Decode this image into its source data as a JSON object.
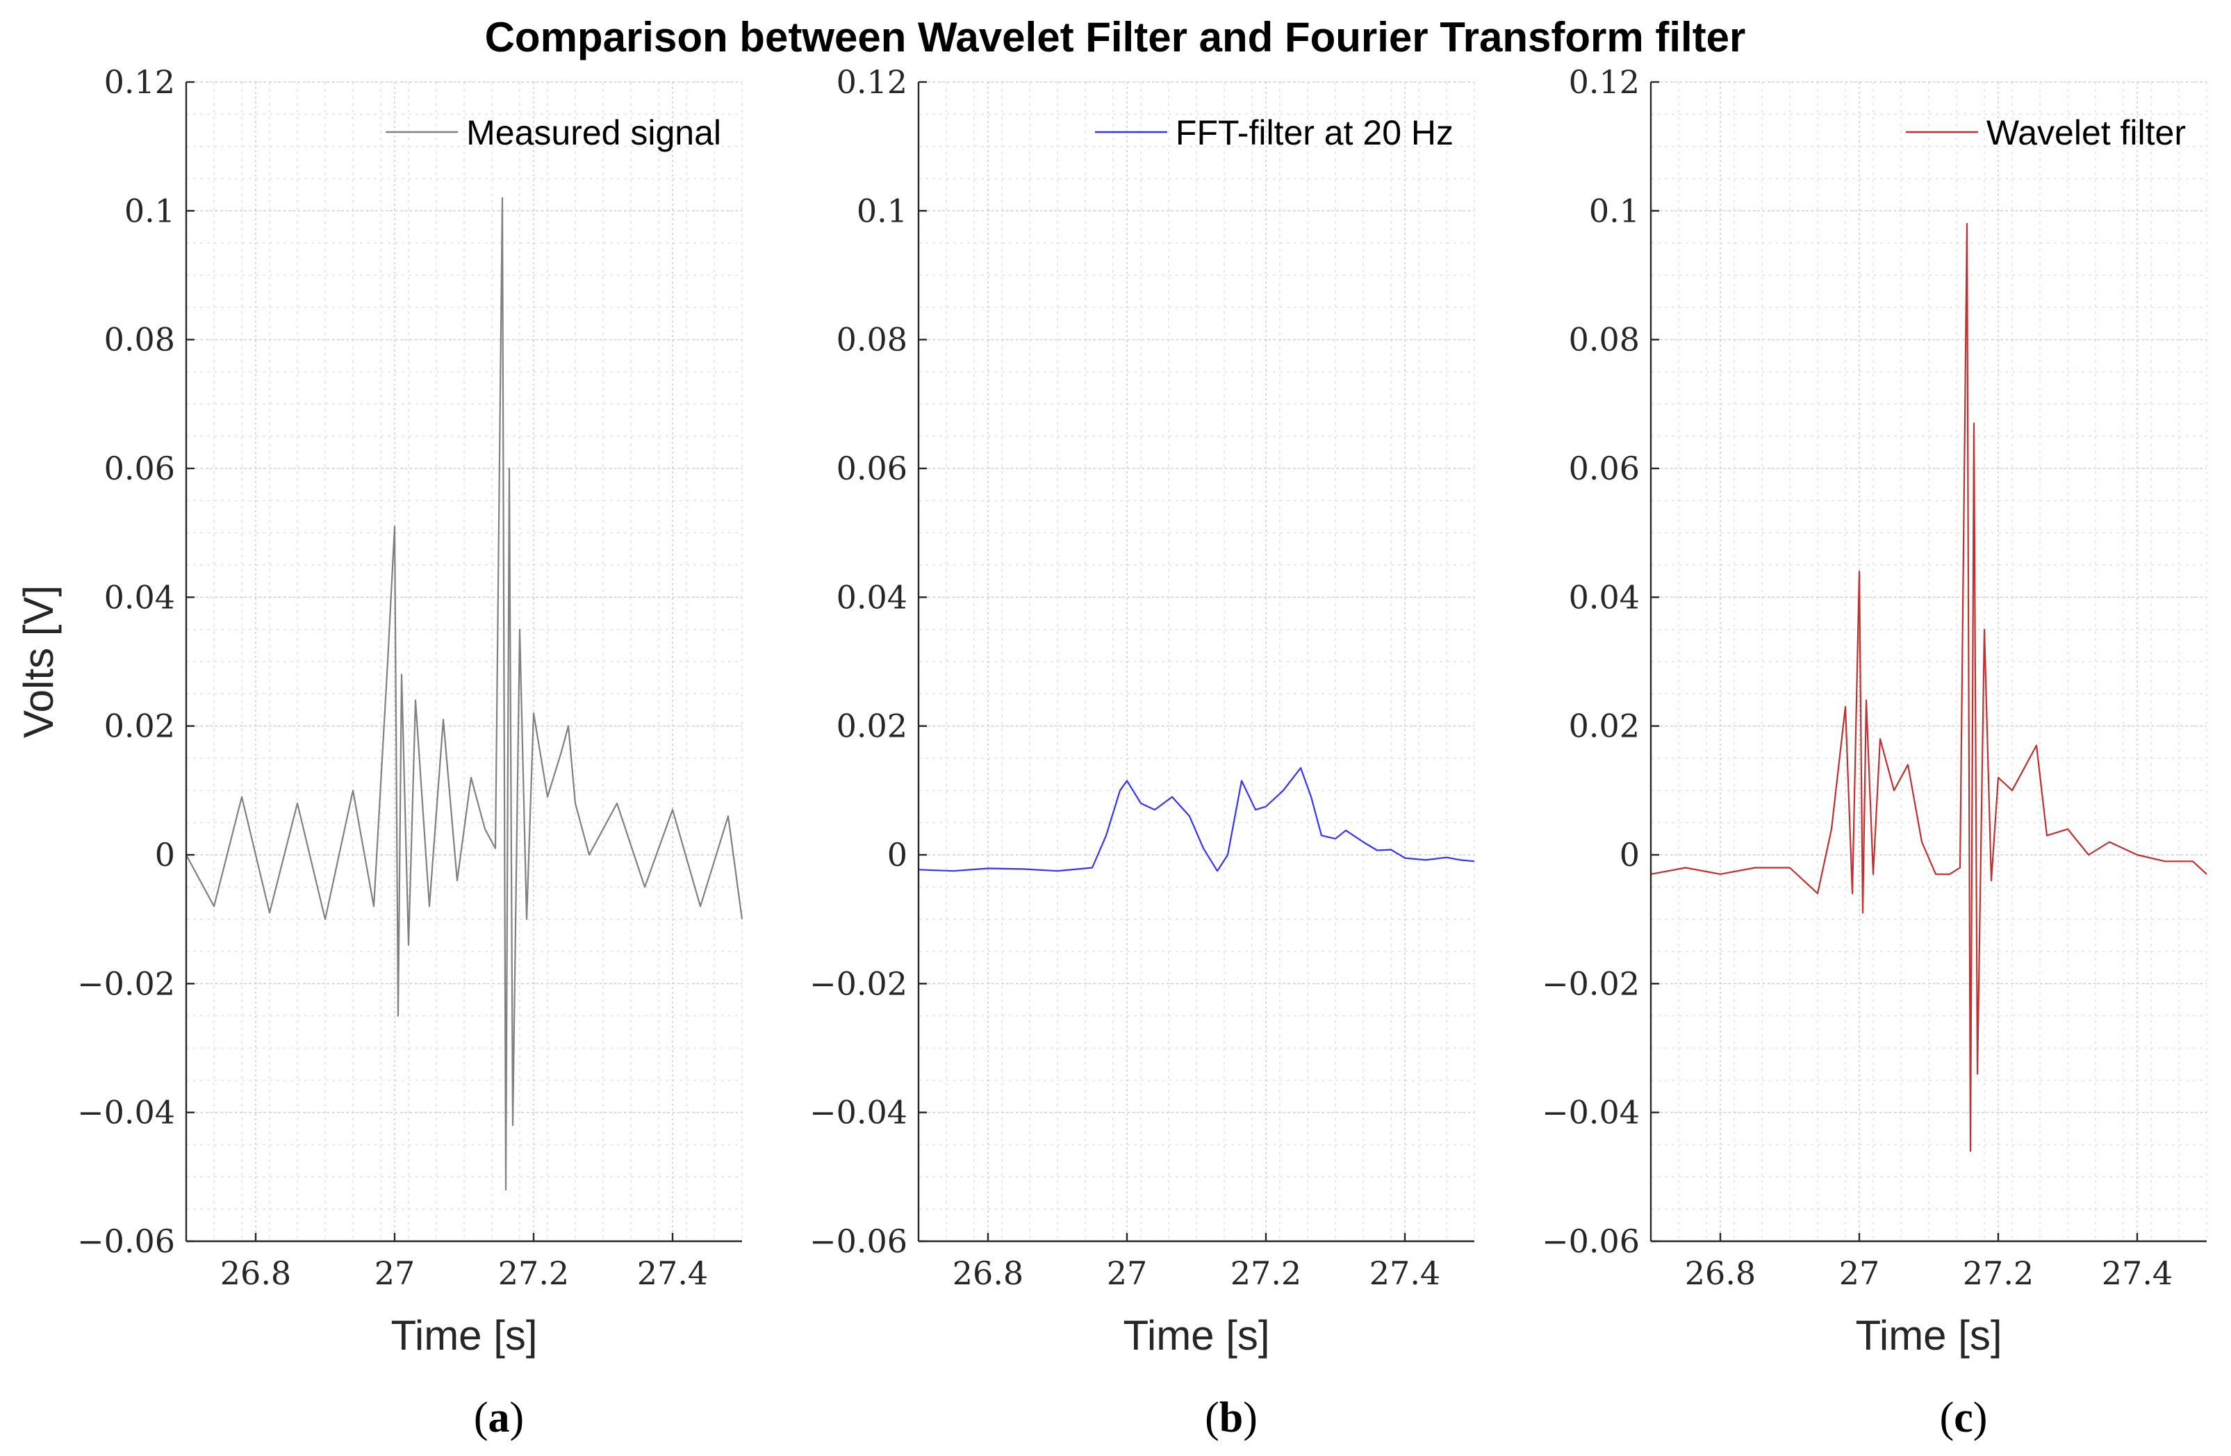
{
  "figure_title": "Comparison between Wavelet Filter and Fourier Transform filter",
  "chart_data": [
    {
      "type": "line",
      "panel_label": "a",
      "xlabel": "Time [s]",
      "ylabel": "Volts [V]",
      "xlim": [
        26.7,
        27.5
      ],
      "ylim": [
        -0.06,
        0.12
      ],
      "xticks": [
        26.8,
        27.0,
        27.2,
        27.4
      ],
      "xtick_labels": [
        "26.8",
        "27",
        "27.2",
        "27.4"
      ],
      "yticks": [
        -0.06,
        -0.04,
        -0.02,
        0,
        0.02,
        0.04,
        0.06,
        0.08,
        0.1,
        0.12
      ],
      "ytick_labels": [
        "−0.06",
        "−0.04",
        "−0.02",
        "0",
        "0.02",
        "0.04",
        "0.06",
        "0.08",
        "0.1",
        "0.12"
      ],
      "grid": true,
      "legend_position": "top-right",
      "series": [
        {
          "name": "Measured signal",
          "color": "#808080",
          "x": [
            26.7,
            26.74,
            26.78,
            26.82,
            26.86,
            26.9,
            26.94,
            26.97,
            26.99,
            27.0,
            27.005,
            27.01,
            27.02,
            27.03,
            27.05,
            27.07,
            27.09,
            27.11,
            27.13,
            27.145,
            27.155,
            27.16,
            27.165,
            27.17,
            27.18,
            27.19,
            27.2,
            27.22,
            27.24,
            27.25,
            27.26,
            27.28,
            27.32,
            27.36,
            27.4,
            27.44,
            27.48,
            27.5
          ],
          "y": [
            0.0,
            -0.008,
            0.009,
            -0.009,
            0.008,
            -0.01,
            0.01,
            -0.008,
            0.03,
            0.051,
            -0.025,
            0.028,
            -0.014,
            0.024,
            -0.008,
            0.021,
            -0.004,
            0.012,
            0.004,
            0.001,
            0.102,
            -0.052,
            0.06,
            -0.042,
            0.035,
            -0.01,
            0.022,
            0.009,
            0.016,
            0.02,
            0.008,
            0.0,
            0.008,
            -0.005,
            0.007,
            -0.008,
            0.006,
            -0.01
          ]
        }
      ]
    },
    {
      "type": "line",
      "panel_label": "b",
      "xlabel": "Time [s]",
      "ylabel": "",
      "xlim": [
        26.7,
        27.5
      ],
      "ylim": [
        -0.06,
        0.12
      ],
      "xticks": [
        26.8,
        27.0,
        27.2,
        27.4
      ],
      "xtick_labels": [
        "26.8",
        "27",
        "27.2",
        "27.4"
      ],
      "yticks": [
        -0.06,
        -0.04,
        -0.02,
        0,
        0.02,
        0.04,
        0.06,
        0.08,
        0.1,
        0.12
      ],
      "ytick_labels": [
        "−0.06",
        "−0.04",
        "−0.02",
        "0",
        "0.02",
        "0.04",
        "0.06",
        "0.08",
        "0.1",
        "0.12"
      ],
      "grid": true,
      "legend_position": "top-right",
      "series": [
        {
          "name": "FFT-filter at 20 Hz",
          "color": "#3333ff",
          "x": [
            26.7,
            26.75,
            26.8,
            26.85,
            26.9,
            26.93,
            26.95,
            26.97,
            26.99,
            27.0,
            27.02,
            27.04,
            27.065,
            27.09,
            27.11,
            27.13,
            27.145,
            27.165,
            27.185,
            27.2,
            27.225,
            27.25,
            27.265,
            27.28,
            27.3,
            27.315,
            27.34,
            27.36,
            27.38,
            27.4,
            27.43,
            27.46,
            27.48,
            27.5
          ],
          "y": [
            -0.0023,
            -0.0025,
            -0.0021,
            -0.0022,
            -0.0025,
            -0.0022,
            -0.002,
            0.003,
            0.01,
            0.0115,
            0.008,
            0.007,
            0.009,
            0.006,
            0.001,
            -0.0025,
            0.0,
            0.0115,
            0.007,
            0.0075,
            0.01,
            0.0135,
            0.009,
            0.003,
            0.0025,
            0.0038,
            0.002,
            0.0007,
            0.0008,
            -0.0005,
            -0.0008,
            -0.0004,
            -0.0008,
            -0.001
          ]
        }
      ]
    },
    {
      "type": "line",
      "panel_label": "c",
      "xlabel": "Time [s]",
      "ylabel": "",
      "xlim": [
        26.7,
        27.5
      ],
      "ylim": [
        -0.06,
        0.12
      ],
      "xticks": [
        26.8,
        27.0,
        27.2,
        27.4
      ],
      "xtick_labels": [
        "26.8",
        "27",
        "27.2",
        "27.4"
      ],
      "yticks": [
        -0.06,
        -0.04,
        -0.02,
        0,
        0.02,
        0.04,
        0.06,
        0.08,
        0.1,
        0.12
      ],
      "ytick_labels": [
        "−0.06",
        "−0.04",
        "−0.02",
        "0",
        "0.02",
        "0.04",
        "0.06",
        "0.08",
        "0.1",
        "0.12"
      ],
      "grid": true,
      "legend_position": "top-right",
      "series": [
        {
          "name": "Wavelet filter",
          "color": "#c03030",
          "x": [
            26.7,
            26.75,
            26.8,
            26.85,
            26.9,
            26.94,
            26.96,
            26.98,
            26.99,
            27.0,
            27.005,
            27.01,
            27.02,
            27.03,
            27.05,
            27.07,
            27.09,
            27.11,
            27.13,
            27.145,
            27.155,
            27.16,
            27.165,
            27.17,
            27.18,
            27.19,
            27.2,
            27.22,
            27.24,
            27.255,
            27.27,
            27.3,
            27.33,
            27.36,
            27.4,
            27.44,
            27.48,
            27.5
          ],
          "y": [
            -0.003,
            -0.002,
            -0.003,
            -0.002,
            -0.002,
            -0.006,
            0.004,
            0.023,
            -0.006,
            0.044,
            -0.009,
            0.024,
            -0.003,
            0.018,
            0.01,
            0.014,
            0.002,
            -0.003,
            -0.003,
            -0.002,
            0.098,
            -0.046,
            0.067,
            -0.034,
            0.035,
            -0.004,
            0.012,
            0.01,
            0.014,
            0.017,
            0.003,
            0.004,
            0.0,
            0.002,
            0.0,
            -0.001,
            -0.001,
            -0.003
          ]
        }
      ]
    }
  ]
}
